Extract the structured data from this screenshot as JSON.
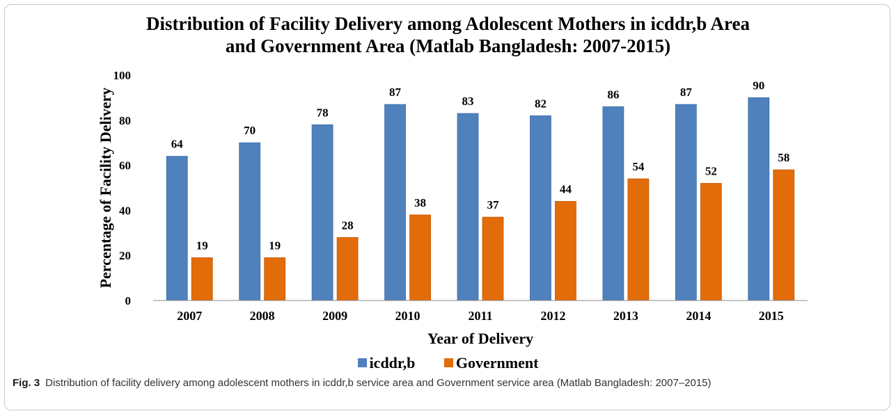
{
  "chart_data": {
    "type": "bar",
    "title": "Distribution of Facility Delivery among Adolescent Mothers in icddr,b Area and Government Area (Matlab Bangladesh: 2007-2015)",
    "title_lines": [
      "Distribution of Facility Delivery among Adolescent Mothers in icddr,b Area",
      "and Government Area (Matlab Bangladesh: 2007-2015)"
    ],
    "xlabel": "Year of Delivery",
    "ylabel": "Percentage of Facility Delivery",
    "ylim": [
      0,
      100
    ],
    "yticks": [
      0,
      20,
      40,
      60,
      80,
      100
    ],
    "categories": [
      "2007",
      "2008",
      "2009",
      "2010",
      "2011",
      "2012",
      "2013",
      "2014",
      "2015"
    ],
    "series": [
      {
        "name": "icddr,b",
        "color": "#4f81bd",
        "values": [
          64,
          70,
          78,
          87,
          83,
          82,
          86,
          87,
          90
        ]
      },
      {
        "name": "Government",
        "color": "#e36c0a",
        "values": [
          19,
          19,
          28,
          38,
          37,
          44,
          54,
          52,
          58
        ]
      }
    ],
    "grid": false,
    "legend_position": "bottom"
  },
  "caption": {
    "label": "Fig. 3",
    "text": "Distribution of facility delivery among adolescent mothers in icddr,b service area and Government service area (Matlab Bangladesh: 2007–2015)"
  }
}
